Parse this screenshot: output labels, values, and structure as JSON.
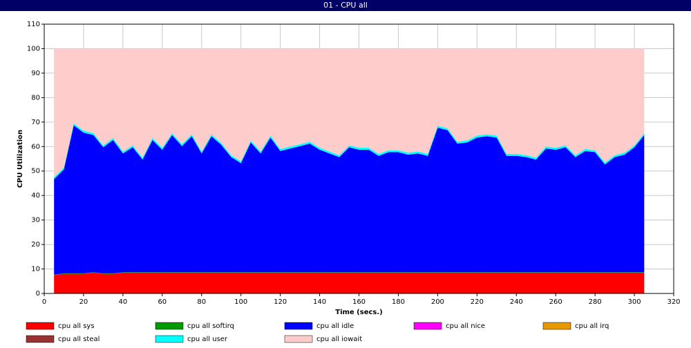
{
  "chart_data": {
    "type": "stacked-area",
    "title": "01 - CPU all",
    "x_label": "Time (secs.)",
    "y_label": "CPU Utilization",
    "xlim": [
      0,
      320
    ],
    "ylim": [
      0,
      110
    ],
    "xticks": [
      0,
      20,
      40,
      60,
      80,
      100,
      120,
      140,
      160,
      180,
      200,
      220,
      240,
      260,
      280,
      300,
      320
    ],
    "yticks": [
      0,
      10,
      20,
      30,
      40,
      50,
      60,
      70,
      80,
      90,
      100,
      110
    ],
    "grid": true,
    "x": [
      5,
      10,
      15,
      20,
      25,
      30,
      35,
      40,
      45,
      50,
      55,
      60,
      65,
      70,
      75,
      80,
      85,
      90,
      95,
      100,
      105,
      110,
      115,
      120,
      125,
      130,
      135,
      140,
      145,
      150,
      155,
      160,
      165,
      170,
      175,
      180,
      185,
      190,
      195,
      200,
      205,
      210,
      215,
      220,
      225,
      230,
      235,
      240,
      245,
      250,
      255,
      260,
      265,
      270,
      275,
      280,
      285,
      290,
      295,
      300,
      305
    ],
    "series": [
      {
        "name": "cpu all sys",
        "color": "#ff0000",
        "values": [
          7.5,
          8,
          8,
          8,
          8.5,
          8,
          8,
          8.5,
          8.5,
          8.5,
          8.5,
          8.5,
          8.5,
          8.5,
          8.5,
          8.5,
          8.5,
          8.5,
          8.5,
          8.5,
          8.5,
          8.5,
          8.5,
          8.5,
          8.5,
          8.5,
          8.5,
          8.5,
          8.5,
          8.5,
          8.5,
          8.5,
          8.5,
          8.5,
          8.5,
          8.5,
          8.5,
          8.5,
          8.5,
          8.5,
          8.5,
          8.5,
          8.5,
          8.5,
          8.5,
          8.5,
          8.5,
          8.5,
          8.5,
          8.5,
          8.5,
          8.5,
          8.5,
          8.5,
          8.5,
          8.5,
          8.5,
          8.5,
          8.5,
          8.5,
          8.5
        ]
      },
      {
        "name": "cpu all softirq",
        "color": "#009900",
        "values": [
          0.2,
          0.2,
          0.2,
          0.2,
          0.2,
          0.2,
          0.2,
          0.2,
          0.2,
          0.2,
          0.2,
          0.2,
          0.2,
          0.2,
          0.2,
          0.2,
          0.2,
          0.2,
          0.2,
          0.2,
          0.2,
          0.2,
          0.2,
          0.2,
          0.2,
          0.2,
          0.2,
          0.2,
          0.2,
          0.2,
          0.2,
          0.2,
          0.2,
          0.2,
          0.2,
          0.2,
          0.2,
          0.2,
          0.2,
          0.2,
          0.2,
          0.2,
          0.2,
          0.2,
          0.2,
          0.2,
          0.2,
          0.2,
          0.2,
          0.2,
          0.2,
          0.2,
          0.2,
          0.2,
          0.2,
          0.2,
          0.2,
          0.2,
          0.2,
          0.2,
          0.2
        ]
      },
      {
        "name": "cpu all idle",
        "color": "#0000ff",
        "values": [
          39,
          42.5,
          60.5,
          57.5,
          56,
          51.5,
          54.5,
          48.5,
          51,
          46,
          54,
          50,
          56,
          51.5,
          55.5,
          48.5,
          55.5,
          52,
          47,
          44.5,
          53,
          48.5,
          55,
          49.5,
          50.5,
          51.5,
          52.5,
          50,
          48.5,
          47,
          51,
          50,
          50,
          47.5,
          49,
          49,
          48,
          48.5,
          47.5,
          59,
          58,
          52.5,
          53,
          55,
          55.5,
          55,
          47.5,
          47.5,
          47,
          46,
          50.5,
          50,
          51,
          47,
          49.5,
          49,
          44,
          47,
          48,
          51,
          56
        ]
      },
      {
        "name": "cpu all nice",
        "color": "#ff00ff",
        "values": [
          0,
          0,
          0,
          0,
          0,
          0,
          0,
          0,
          0,
          0,
          0,
          0,
          0,
          0,
          0,
          0,
          0,
          0,
          0,
          0,
          0,
          0,
          0,
          0,
          0,
          0,
          0,
          0,
          0,
          0,
          0,
          0,
          0,
          0,
          0,
          0,
          0,
          0,
          0,
          0,
          0,
          0,
          0,
          0,
          0,
          0,
          0,
          0,
          0,
          0,
          0,
          0,
          0,
          0,
          0,
          0,
          0,
          0,
          0,
          0,
          0
        ]
      },
      {
        "name": "cpu all irq",
        "color": "#e69900",
        "values": [
          0,
          0,
          0,
          0,
          0,
          0,
          0,
          0,
          0,
          0,
          0,
          0,
          0,
          0,
          0,
          0,
          0,
          0,
          0,
          0,
          0,
          0,
          0,
          0,
          0,
          0,
          0,
          0,
          0,
          0,
          0,
          0,
          0,
          0,
          0,
          0,
          0,
          0,
          0,
          0,
          0,
          0,
          0,
          0,
          0,
          0,
          0,
          0,
          0,
          0,
          0,
          0,
          0,
          0,
          0,
          0,
          0,
          0,
          0,
          0,
          0
        ]
      },
      {
        "name": "cpu all steal",
        "color": "#993333",
        "values": [
          0,
          0,
          0,
          0,
          0,
          0,
          0,
          0,
          0,
          0,
          0,
          0,
          0,
          0,
          0,
          0,
          0,
          0,
          0,
          0,
          0,
          0,
          0,
          0,
          0,
          0,
          0,
          0,
          0,
          0,
          0,
          0,
          0,
          0,
          0,
          0,
          0,
          0,
          0,
          0,
          0,
          0,
          0,
          0,
          0,
          0,
          0,
          0,
          0,
          0,
          0,
          0,
          0,
          0,
          0,
          0,
          0,
          0,
          0,
          0,
          0
        ]
      },
      {
        "name": "cpu all user",
        "color": "#00ffff",
        "values": [
          0.8,
          0.8,
          0.8,
          0.8,
          0.8,
          0.8,
          0.8,
          0.8,
          0.8,
          0.8,
          0.8,
          0.8,
          0.8,
          0.8,
          0.8,
          0.8,
          0.8,
          0.8,
          0.8,
          0.8,
          0.8,
          0.8,
          0.8,
          0.8,
          0.8,
          0.8,
          0.8,
          0.8,
          0.8,
          0.8,
          0.8,
          0.8,
          0.8,
          0.8,
          0.8,
          0.8,
          0.8,
          0.8,
          0.8,
          0.8,
          0.8,
          0.8,
          0.8,
          0.8,
          0.8,
          0.8,
          0.8,
          0.8,
          0.8,
          0.8,
          0.8,
          0.8,
          0.8,
          0.8,
          0.8,
          0.8,
          0.8,
          0.8,
          0.8,
          0.8,
          0.8
        ]
      },
      {
        "name": "cpu all iowait",
        "color": "#ffcccc",
        "values": [
          52.5,
          48.5,
          30.5,
          33.5,
          34.5,
          39.5,
          36.5,
          42,
          39.5,
          44.5,
          36.5,
          40.5,
          34.5,
          39,
          35,
          42,
          35,
          38.5,
          43.5,
          46,
          37.5,
          42,
          35.5,
          41,
          40,
          39,
          38,
          40.5,
          42,
          43.5,
          39.5,
          40.5,
          40.5,
          43,
          41.5,
          41.5,
          42.5,
          42,
          43,
          31.5,
          32.5,
          38,
          37.5,
          35.5,
          35,
          35.5,
          43,
          43,
          43.5,
          44.5,
          40,
          40.5,
          39.5,
          43.5,
          41,
          41.5,
          46.5,
          43.5,
          42.5,
          39.5,
          34.5
        ]
      }
    ]
  }
}
